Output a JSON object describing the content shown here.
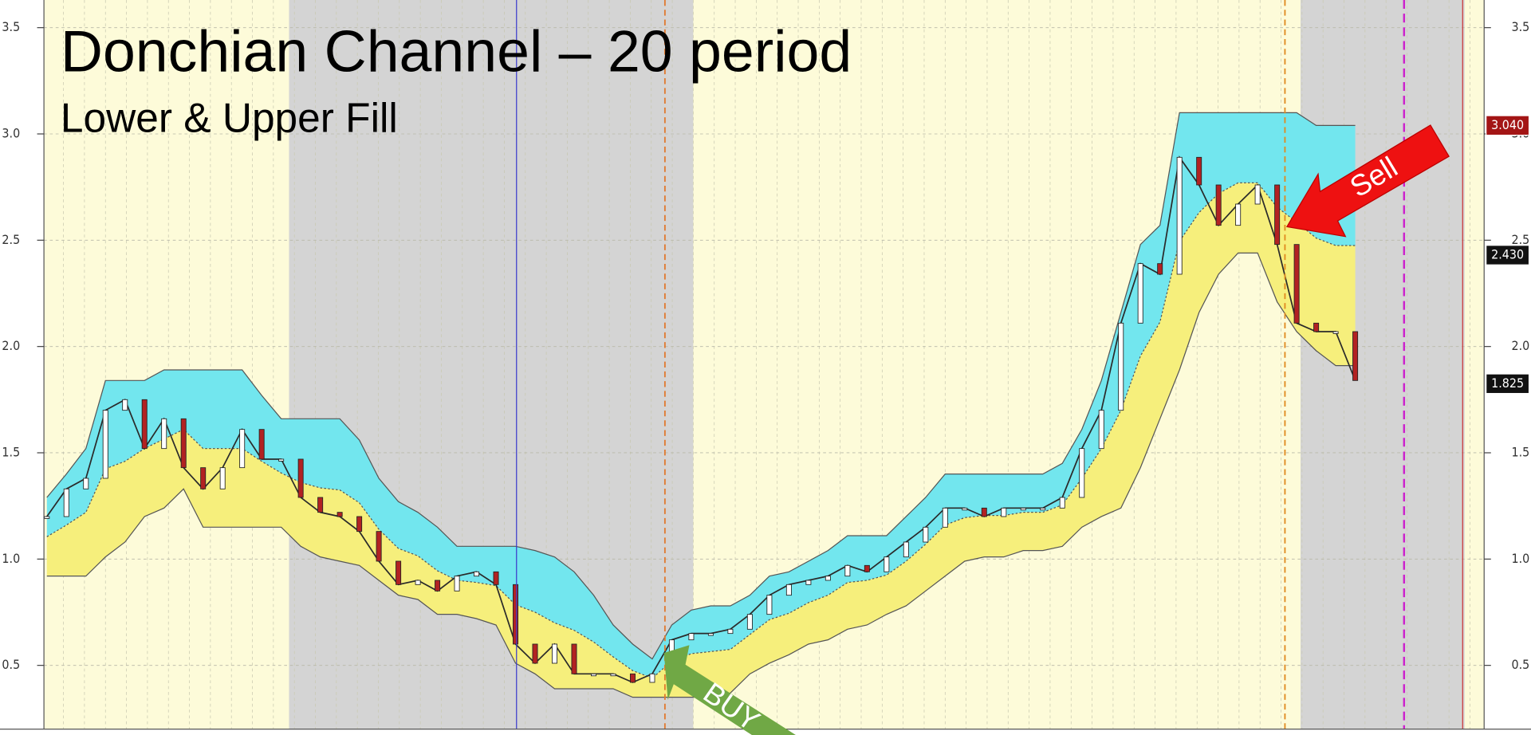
{
  "chart_data": {
    "type": "channel",
    "title": "Donchian Channel – 20 period",
    "subtitle": "Lower & Upper Fill",
    "annotations": [
      "BUY",
      "Sell"
    ],
    "ylim": [
      0.2,
      3.63
    ],
    "yticks": [
      0.5,
      {
        "value": 1,
        "label": "1.0"
      },
      1.5,
      {
        "value": 2,
        "label": "2.0"
      },
      2.5,
      {
        "value": 3,
        "label": "3.0"
      },
      3.5
    ],
    "grid": true,
    "price_labels": [
      {
        "value": 3.04,
        "label": "3.040",
        "color": "#a31515"
      },
      {
        "value": 2.43,
        "label": "2.430",
        "color": "#111111"
      },
      {
        "value": 1.825,
        "label": "1.825",
        "color": "#111111"
      }
    ],
    "series": [
      {
        "color": "#72e6ee",
        "values": [
          1.29,
          1.4,
          1.52,
          1.84,
          1.84,
          1.84,
          1.89,
          1.89,
          1.89,
          1.89,
          1.89,
          1.77,
          1.66,
          1.66,
          1.66,
          1.66,
          1.56,
          1.38,
          1.27,
          1.22,
          1.15,
          1.06,
          1.06,
          1.06,
          1.06,
          1.04,
          1.01,
          0.94,
          0.83,
          0.69,
          0.6,
          0.53,
          0.69,
          0.76,
          0.78,
          0.78,
          0.83,
          0.92,
          0.94,
          0.99,
          1.04,
          1.11,
          1.11,
          1.11,
          1.2,
          1.29,
          1.4,
          1.4,
          1.4,
          1.4,
          1.4,
          1.4,
          1.45,
          1.61,
          1.84,
          2.16,
          2.48,
          2.57,
          3.1,
          3.1,
          3.1,
          3.1,
          3.1,
          3.1,
          3.1,
          3.04,
          3.04,
          3.04
        ]
      },
      {
        "color": "#f6ef7c",
        "values": [
          0.92,
          0.92,
          0.92,
          1.01,
          1.08,
          1.2,
          1.24,
          1.33,
          1.15,
          1.15,
          1.15,
          1.15,
          1.15,
          1.06,
          1.01,
          0.99,
          0.97,
          0.9,
          0.83,
          0.81,
          0.74,
          0.74,
          0.72,
          0.69,
          0.51,
          0.46,
          0.39,
          0.39,
          0.39,
          0.39,
          0.35,
          0.35,
          0.35,
          0.35,
          0.35,
          0.37,
          0.46,
          0.51,
          0.55,
          0.6,
          0.62,
          0.67,
          0.69,
          0.74,
          0.78,
          0.85,
          0.92,
          0.99,
          1.01,
          1.01,
          1.04,
          1.04,
          1.06,
          1.15,
          1.2,
          1.24,
          1.43,
          1.66,
          1.89,
          2.16,
          2.34,
          2.44,
          2.44,
          2.21,
          2.07,
          1.98,
          1.91,
          1.91
        ]
      },
      {
        "color": "#2a2a2a",
        "values": [
          1.2,
          1.33,
          1.38,
          1.7,
          1.75,
          1.52,
          1.66,
          1.43,
          1.33,
          1.43,
          1.61,
          1.47,
          1.47,
          1.29,
          1.22,
          1.2,
          1.13,
          0.99,
          0.88,
          0.9,
          0.85,
          0.92,
          0.94,
          0.88,
          0.6,
          0.51,
          0.6,
          0.46,
          0.46,
          0.46,
          0.42,
          0.46,
          0.62,
          0.65,
          0.65,
          0.67,
          0.74,
          0.83,
          0.88,
          0.9,
          0.92,
          0.97,
          0.94,
          1.01,
          1.08,
          1.15,
          1.24,
          1.24,
          1.2,
          1.24,
          1.24,
          1.24,
          1.29,
          1.52,
          1.7,
          2.11,
          2.39,
          2.34,
          2.89,
          2.76,
          2.57,
          2.67,
          2.76,
          2.48,
          2.11,
          2.07,
          2.07,
          1.84
        ]
      }
    ]
  }
}
